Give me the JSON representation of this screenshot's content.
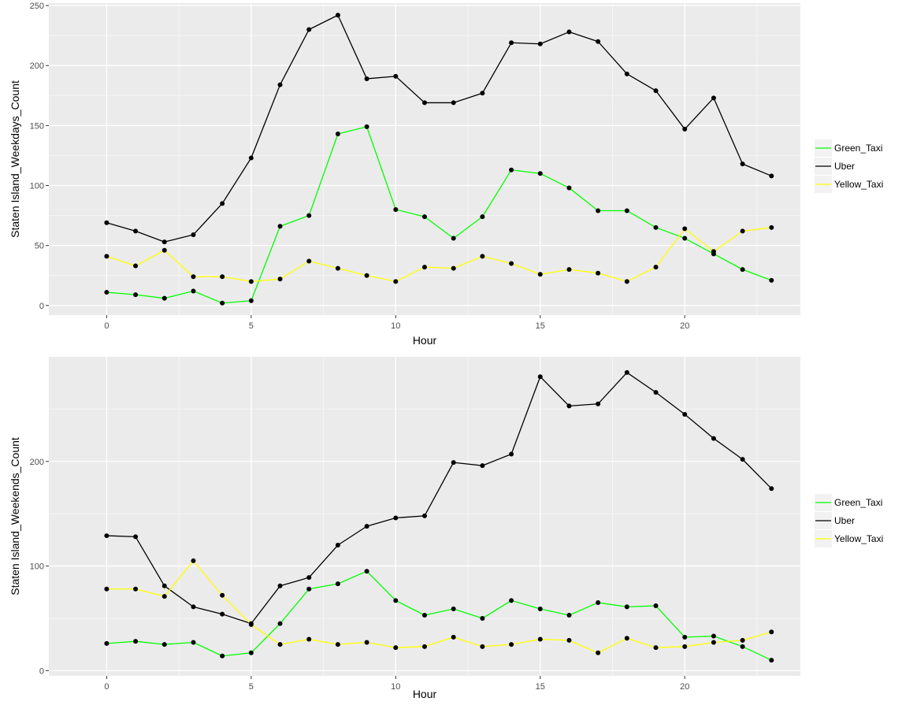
{
  "colors": {
    "panel_bg": "#EBEBEB",
    "grid_major": "#FFFFFF",
    "grid_minor": "#F5F5F5",
    "legend_key_bg": "#F2F2F2",
    "series": {
      "Green_Taxi": "#00FF00",
      "Uber": "#000000",
      "Yellow_Taxi": "#FFFF00"
    }
  },
  "chart_data": [
    {
      "type": "line",
      "xlabel": "Hour",
      "ylabel": "Staten Island_Weekdays_Count",
      "xlim": [
        -2,
        24
      ],
      "ylim": [
        -8,
        252
      ],
      "x_ticks": [
        0,
        5,
        10,
        15,
        20
      ],
      "y_ticks": [
        0,
        50,
        100,
        150,
        200,
        250
      ],
      "grid": true,
      "legend_position": "right",
      "legend": [
        "Green_Taxi",
        "Uber",
        "Yellow_Taxi"
      ],
      "x": [
        0,
        1,
        2,
        3,
        4,
        5,
        6,
        7,
        8,
        9,
        10,
        11,
        12,
        13,
        14,
        15,
        16,
        17,
        18,
        19,
        20,
        21,
        22,
        23
      ],
      "series": [
        {
          "name": "Green_Taxi",
          "color": "#00FF00",
          "values": [
            11,
            9,
            6,
            12,
            2,
            4,
            66,
            75,
            143,
            149,
            80,
            74,
            56,
            74,
            113,
            110,
            98,
            79,
            79,
            65,
            56,
            43,
            30,
            21
          ]
        },
        {
          "name": "Uber",
          "color": "#000000",
          "values": [
            69,
            62,
            53,
            59,
            85,
            123,
            184,
            230,
            242,
            189,
            191,
            169,
            169,
            177,
            219,
            218,
            228,
            220,
            193,
            179,
            147,
            173,
            118,
            108
          ]
        },
        {
          "name": "Yellow_Taxi",
          "color": "#FFFF00",
          "values": [
            41,
            33,
            46,
            24,
            24,
            20,
            22,
            37,
            31,
            25,
            20,
            32,
            31,
            41,
            35,
            26,
            30,
            27,
            20,
            32,
            64,
            45,
            62,
            65
          ]
        }
      ]
    },
    {
      "type": "line",
      "xlabel": "Hour",
      "ylabel": "Staten Island_Weekends_Count",
      "xlim": [
        -2,
        24
      ],
      "ylim": [
        -5,
        300
      ],
      "x_ticks": [
        0,
        5,
        10,
        15,
        20
      ],
      "y_ticks": [
        0,
        100,
        200
      ],
      "grid": true,
      "legend_position": "right",
      "legend": [
        "Green_Taxi",
        "Uber",
        "Yellow_Taxi"
      ],
      "x": [
        0,
        1,
        2,
        3,
        4,
        5,
        6,
        7,
        8,
        9,
        10,
        11,
        12,
        13,
        14,
        15,
        16,
        17,
        18,
        19,
        20,
        21,
        22,
        23
      ],
      "series": [
        {
          "name": "Green_Taxi",
          "color": "#00FF00",
          "values": [
            26,
            28,
            25,
            27,
            14,
            17,
            45,
            78,
            83,
            95,
            67,
            53,
            59,
            50,
            67,
            59,
            53,
            65,
            61,
            62,
            32,
            33,
            23,
            10
          ]
        },
        {
          "name": "Uber",
          "color": "#000000",
          "values": [
            129,
            128,
            81,
            61,
            54,
            45,
            81,
            89,
            120,
            138,
            146,
            148,
            199,
            196,
            207,
            281,
            253,
            255,
            285,
            266,
            245,
            222,
            202,
            174
          ]
        },
        {
          "name": "Yellow_Taxi",
          "color": "#FFFF00",
          "values": [
            78,
            78,
            71,
            105,
            72,
            44,
            25,
            30,
            25,
            27,
            22,
            23,
            32,
            23,
            25,
            30,
            29,
            17,
            31,
            22,
            23,
            27,
            29,
            37
          ]
        }
      ]
    }
  ]
}
